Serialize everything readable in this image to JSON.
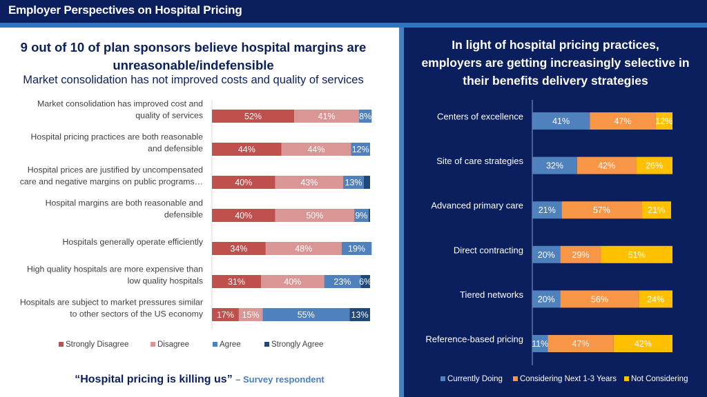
{
  "header": {
    "title": "Employer Perspectives on Hospital Pricing"
  },
  "left": {
    "headline_line1": "9 out of 10 of plan sponsors believe hospital margins are",
    "headline_line2": "unreasonable/indefensible",
    "subhead": "Market consolidation has not improved costs and quality of services",
    "quote": "“Hospital pricing is killing us”",
    "quote_attribution": "– Survey respondent"
  },
  "right": {
    "headline_line1": "In light of hospital pricing practices,",
    "headline_line2": "employers are getting increasingly selective in",
    "headline_line3": "their benefits delivery strategies"
  },
  "chart_data": [
    {
      "type": "bar",
      "orientation": "horizontal",
      "stacked": "100%",
      "title": "",
      "legend_position": "bottom",
      "categories": [
        [
          "Market consolidation has improved cost and",
          "quality of services"
        ],
        [
          "Hospital pricing practices are both reasonable",
          "and defensible"
        ],
        [
          "Hospital prices are justified by uncompensated",
          "care and negative margins on public programs…"
        ],
        [
          "Hospital margins are both reasonable and",
          "defensible"
        ],
        [
          "Hospitals generally operate efficiently"
        ],
        [
          "High quality hospitals are more expensive than",
          "low quality hospitals"
        ],
        [
          "Hospitals are subject to market pressures similar",
          "to other sectors of the US economy"
        ]
      ],
      "series": [
        {
          "name": "Strongly Disagree",
          "color": "#c0504d",
          "values": [
            52,
            44,
            40,
            40,
            34,
            31,
            17
          ],
          "labels": [
            "52%",
            "44%",
            "40%",
            "40%",
            "34%",
            "31%",
            "17%"
          ]
        },
        {
          "name": "Disagree",
          "color": "#d99694",
          "values": [
            41,
            44,
            43,
            50,
            48,
            40,
            15
          ],
          "labels": [
            "41%",
            "44%",
            "43%",
            "50%",
            "48%",
            "40%",
            "15%"
          ]
        },
        {
          "name": "Agree",
          "color": "#4f81bd",
          "values": [
            8,
            12,
            13,
            9,
            19,
            23,
            55
          ],
          "labels": [
            "8%",
            "12%",
            "13%",
            "9%",
            "19%",
            "23%",
            "55%"
          ]
        },
        {
          "name": "Strongly Agree",
          "color": "#1f497d",
          "values": [
            0,
            0,
            4,
            1,
            0,
            6,
            13
          ],
          "labels": [
            "",
            "",
            "",
            "",
            "",
            "6%",
            "13%"
          ]
        }
      ],
      "xlim": [
        0,
        100
      ]
    },
    {
      "type": "bar",
      "orientation": "horizontal",
      "stacked": "100%",
      "title": "",
      "legend_position": "bottom",
      "categories": [
        [
          "Centers of excellence"
        ],
        [
          "Site of care strategies"
        ],
        [
          "Advanced primary care"
        ],
        [
          "Direct contracting"
        ],
        [
          "Tiered networks"
        ],
        [
          "Reference-based pricing"
        ]
      ],
      "series": [
        {
          "name": "Currently Doing",
          "color": "#4f81bd",
          "values": [
            41,
            32,
            21,
            20,
            20,
            11
          ],
          "labels": [
            "41%",
            "32%",
            "21%",
            "20%",
            "20%",
            "11%"
          ]
        },
        {
          "name": "Considering Next 1-3 Years",
          "color": "#f79646",
          "values": [
            47,
            42,
            57,
            29,
            56,
            47
          ],
          "labels": [
            "47%",
            "42%",
            "57%",
            "29%",
            "56%",
            "47%"
          ]
        },
        {
          "name": "Not Considering",
          "color": "#ffc000",
          "values": [
            12,
            26,
            21,
            51,
            24,
            42
          ],
          "labels": [
            "12%",
            "26%",
            "21%",
            "51%",
            "24%",
            "42%"
          ]
        }
      ],
      "xlim": [
        0,
        100
      ]
    }
  ]
}
